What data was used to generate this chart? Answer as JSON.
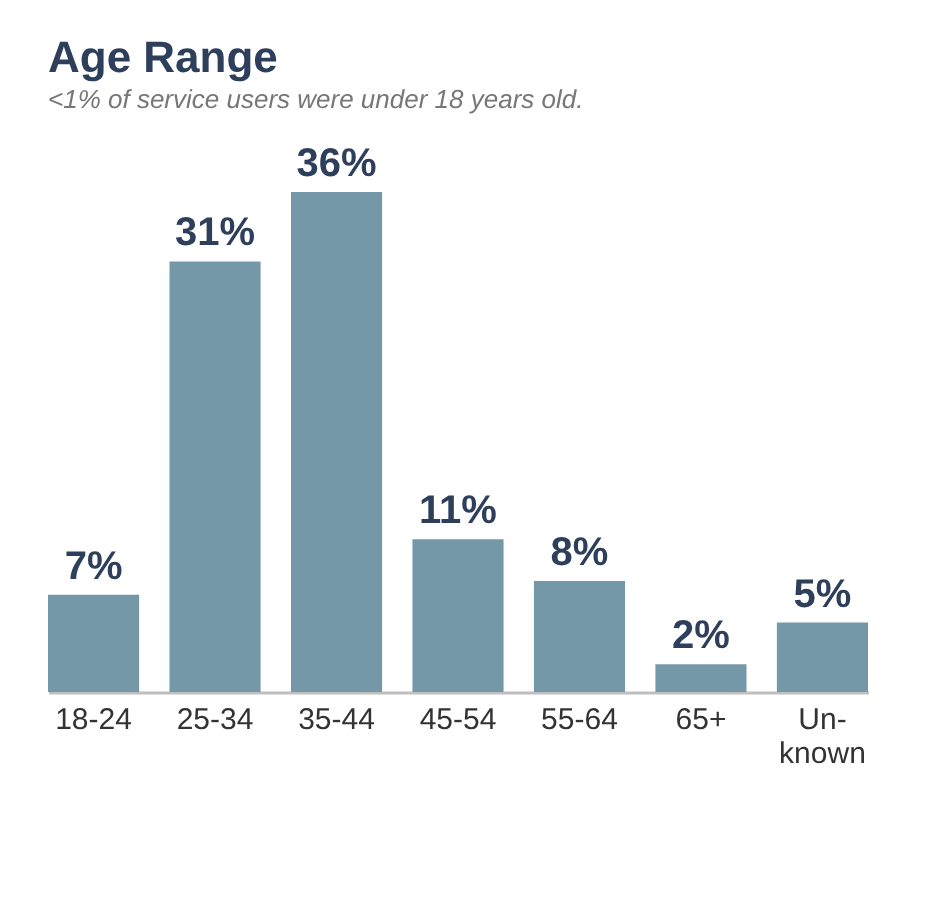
{
  "chart_data": {
    "type": "bar",
    "title": "Age Range",
    "subtitle": "<1% of service users were under 18 years old.",
    "categories": [
      "18-24",
      "25-34",
      "35-44",
      "45-54",
      "55-64",
      "65+",
      "Un-\nknown"
    ],
    "values": [
      7,
      31,
      36,
      11,
      8,
      2,
      5
    ],
    "value_labels": [
      "7%",
      "31%",
      "36%",
      "11%",
      "8%",
      "2%",
      "5%"
    ],
    "color": "#7598a9",
    "grid": false
  }
}
